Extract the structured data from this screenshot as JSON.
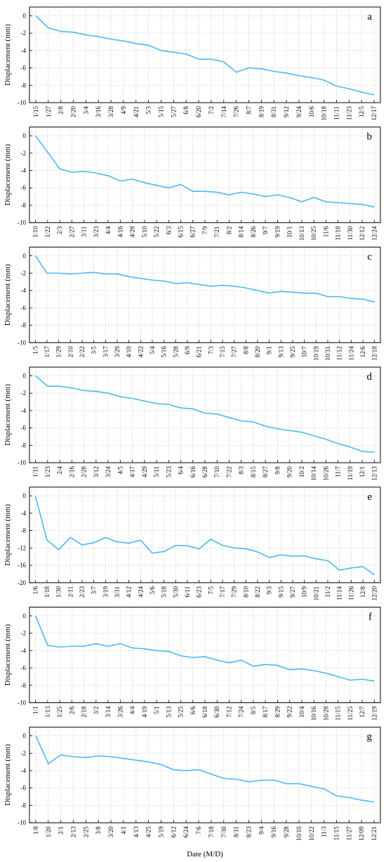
{
  "chart_data": [
    {
      "type": "line",
      "annotation": "a",
      "y_label": "Displacement (mm)",
      "color": "#4db8f0",
      "grid": true,
      "ylim": [
        -10,
        1
      ],
      "yticks": [
        0,
        -2,
        -4,
        -6,
        -8,
        -10
      ],
      "categories": [
        "1/15",
        "1/27",
        "2/8",
        "2/20",
        "3/4",
        "3/16",
        "3/28",
        "4/9",
        "4/21",
        "5/3",
        "5/15",
        "5/27",
        "6/8",
        "6/20",
        "7/2",
        "7/14",
        "7/26",
        "8/7",
        "8/19",
        "8/31",
        "9/12",
        "9/24",
        "10/6",
        "10/18",
        "11/11",
        "11/23",
        "12/5",
        "12/17"
      ],
      "values": [
        0,
        -1.4,
        -1.8,
        -1.9,
        -2.2,
        -2.4,
        -2.7,
        -2.9,
        -3.2,
        -3.4,
        -4.0,
        -4.2,
        -4.4,
        -5.0,
        -5.0,
        -5.3,
        -6.5,
        -6.0,
        -6.1,
        -6.4,
        -6.6,
        -6.9,
        -7.1,
        -7.4,
        -8.1,
        -8.4,
        -8.8,
        -9.1
      ]
    },
    {
      "type": "line",
      "annotation": "b",
      "y_label": "Displacement (mm)",
      "color": "#4db8f0",
      "grid": true,
      "ylim": [
        -10,
        1
      ],
      "yticks": [
        0,
        -2,
        -4,
        -6,
        -8,
        -10
      ],
      "categories": [
        "1/10",
        "1/22",
        "2/3",
        "2/27",
        "3/11",
        "3/23",
        "4/4",
        "4/16",
        "4/28",
        "5/10",
        "5/22",
        "6/3",
        "6/15",
        "6/27",
        "7/9",
        "7/21",
        "8/2",
        "8/14",
        "8/26",
        "9/7",
        "9/19",
        "10/1",
        "10/13",
        "10/25",
        "11/6",
        "11/18",
        "11/30",
        "12/12",
        "12/24"
      ],
      "values": [
        0,
        -1.9,
        -3.8,
        -4.2,
        -4.1,
        -4.3,
        -4.6,
        -5.2,
        -5.0,
        -5.4,
        -5.7,
        -6.0,
        -5.6,
        -6.4,
        -6.4,
        -6.5,
        -6.8,
        -6.5,
        -6.7,
        -7.0,
        -6.8,
        -7.1,
        -7.6,
        -7.1,
        -7.6,
        -7.7,
        -7.8,
        -7.9,
        -8.2
      ]
    },
    {
      "type": "line",
      "annotation": "c",
      "y_label": "Displacement (mm)",
      "color": "#4db8f0",
      "grid": true,
      "ylim": [
        -10,
        1
      ],
      "yticks": [
        0,
        -2,
        -4,
        -6,
        -8,
        -10
      ],
      "categories": [
        "1/5",
        "1/17",
        "1/29",
        "2/10",
        "2/22",
        "3/5",
        "3/17",
        "3/29",
        "4/10",
        "4/22",
        "5/4",
        "5/16",
        "5/28",
        "6/9",
        "6/21",
        "7/3",
        "7/15",
        "7/27",
        "8/8",
        "8/20",
        "9/1",
        "9/13",
        "9/25",
        "10/7",
        "10/19",
        "10/31",
        "11/12",
        "11/24",
        "12/6",
        "12/18"
      ],
      "values": [
        0,
        -2.0,
        -2.0,
        -2.1,
        -2.0,
        -1.9,
        -2.1,
        -2.1,
        -2.4,
        -2.6,
        -2.8,
        -2.9,
        -3.2,
        -3.1,
        -3.3,
        -3.5,
        -3.4,
        -3.5,
        -3.7,
        -4.0,
        -4.3,
        -4.1,
        -4.2,
        -4.3,
        -4.3,
        -4.7,
        -4.7,
        -4.9,
        -5.0,
        -5.3
      ]
    },
    {
      "type": "line",
      "annotation": "d",
      "y_label": "Displacement (mm)",
      "color": "#4db8f0",
      "grid": true,
      "ylim": [
        -10,
        1
      ],
      "yticks": [
        0,
        -2,
        -4,
        -6,
        -8,
        -10
      ],
      "categories": [
        "1/11",
        "1/23",
        "2/4",
        "2/16",
        "2/28",
        "3/12",
        "3/24",
        "4/5",
        "4/17",
        "4/29",
        "5/11",
        "5/23",
        "6/4",
        "6/16",
        "6/28",
        "7/10",
        "7/22",
        "8/3",
        "8/15",
        "8/27",
        "9/8",
        "9/20",
        "10/2",
        "10/14",
        "10/26",
        "11/7",
        "11/19",
        "12/1",
        "12/13"
      ],
      "values": [
        0,
        -1.2,
        -1.2,
        -1.4,
        -1.7,
        -1.8,
        -2.0,
        -2.4,
        -2.6,
        -2.9,
        -3.2,
        -3.3,
        -3.7,
        -3.8,
        -4.3,
        -4.4,
        -4.8,
        -5.2,
        -5.3,
        -5.8,
        -6.1,
        -6.3,
        -6.5,
        -6.9,
        -7.3,
        -7.8,
        -8.2,
        -8.7,
        -8.8
      ]
    },
    {
      "type": "line",
      "annotation": "e",
      "y_label": "Displacement (mm)",
      "color": "#4db8f0",
      "grid": true,
      "ylim": [
        -20,
        2
      ],
      "yticks": [
        0,
        -4,
        -8,
        -12,
        -16,
        -20
      ],
      "categories": [
        "1/6",
        "1/18",
        "1/30",
        "2/11",
        "2/23",
        "3/7",
        "3/19",
        "3/31",
        "4/12",
        "4/24",
        "5/6",
        "5/18",
        "5/30",
        "6/11",
        "6/23",
        "7/5",
        "7/17",
        "7/29",
        "8/10",
        "8/22",
        "9/3",
        "9/15",
        "9/27",
        "10/9",
        "10/21",
        "11/2",
        "11/14",
        "11/26",
        "12/8",
        "12/20"
      ],
      "values": [
        0,
        -10.2,
        -12.4,
        -9.6,
        -11.3,
        -10.8,
        -9.6,
        -10.6,
        -10.9,
        -10.2,
        -13.2,
        -12.8,
        -11.4,
        -11.5,
        -12.2,
        -10.0,
        -11.4,
        -12.0,
        -12.2,
        -12.9,
        -14.2,
        -13.6,
        -13.9,
        -13.8,
        -14.5,
        -14.9,
        -17.1,
        -16.6,
        -16.3,
        -18.2
      ]
    },
    {
      "type": "line",
      "annotation": "f",
      "y_label": "Displacement (mm)",
      "color": "#4db8f0",
      "grid": true,
      "ylim": [
        -10,
        1
      ],
      "yticks": [
        0,
        -2,
        -4,
        -6,
        -8,
        -10
      ],
      "categories": [
        "1/1",
        "1/13",
        "1/25",
        "2/6",
        "2/18",
        "3/2",
        "3/14",
        "3/26",
        "4/4",
        "4/19",
        "5/1",
        "5/13",
        "5/25",
        "6/6",
        "6/18",
        "6/30",
        "7/12",
        "7/24",
        "8/5",
        "8/17",
        "8/29",
        "9/22",
        "10/4",
        "10/16",
        "10/28",
        "11/15",
        "11/25",
        "12/7",
        "12/19"
      ],
      "values": [
        0,
        -3.4,
        -3.6,
        -3.5,
        -3.5,
        -3.2,
        -3.5,
        -3.2,
        -3.7,
        -3.8,
        -4.0,
        -4.1,
        -4.6,
        -4.8,
        -4.7,
        -5.1,
        -5.4,
        -5.1,
        -5.8,
        -5.6,
        -5.7,
        -6.2,
        -6.1,
        -6.3,
        -6.6,
        -7.0,
        -7.4,
        -7.3,
        -7.5
      ]
    },
    {
      "type": "line",
      "annotation": "g",
      "y_label": "Displacement (mm)",
      "x_label": "Date (M/D)",
      "color": "#4db8f0",
      "grid": true,
      "ylim": [
        -10,
        1
      ],
      "yticks": [
        0,
        -2,
        -4,
        -6,
        -8,
        -10
      ],
      "categories": [
        "1/8",
        "1/20",
        "2/1",
        "2/13",
        "2/25",
        "3/8",
        "3/20",
        "4/1",
        "4/13",
        "4/25",
        "5/19",
        "6/12",
        "6/24",
        "7/6",
        "7/18",
        "7/30",
        "8/11",
        "8/23",
        "9/4",
        "9/16",
        "9/28",
        "10/10",
        "10/22",
        "11/3",
        "11/15",
        "11/27",
        "12/09",
        "12/21"
      ],
      "values": [
        0,
        -3.2,
        -2.2,
        -2.4,
        -2.5,
        -2.3,
        -2.4,
        -2.6,
        -2.8,
        -3.0,
        -3.3,
        -3.9,
        -4.0,
        -3.9,
        -4.4,
        -4.9,
        -5.0,
        -5.3,
        -5.1,
        -5.1,
        -5.5,
        -5.5,
        -5.8,
        -6.1,
        -6.9,
        -7.1,
        -7.4,
        -7.6
      ]
    }
  ]
}
